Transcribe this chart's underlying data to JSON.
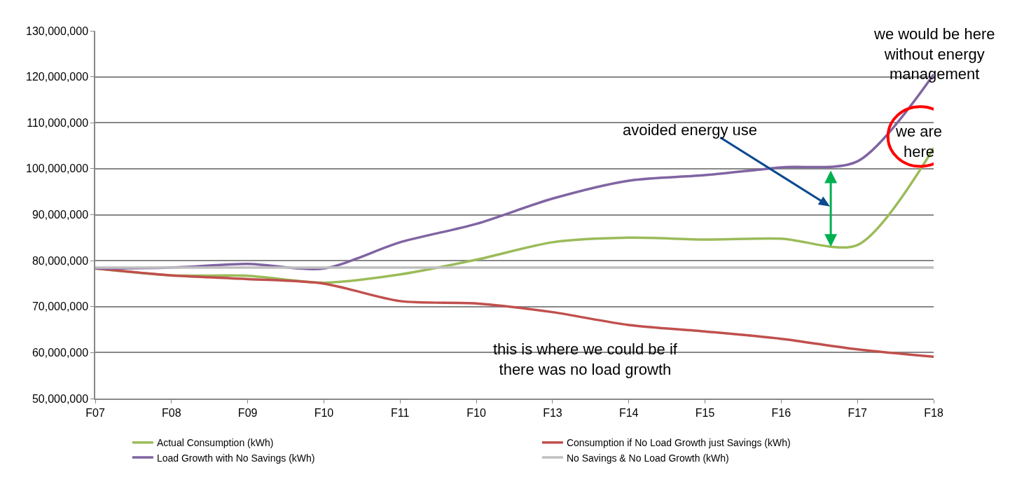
{
  "chart_data": {
    "type": "line",
    "categories": [
      "F07",
      "F08",
      "F09",
      "F10",
      "F11",
      "F10",
      "F13",
      "F14",
      "F15",
      "F16",
      "F17",
      "F18"
    ],
    "series": [
      {
        "name": "Actual Consumption (kWh)",
        "color": "#9bbb59",
        "values": [
          78300000,
          76800000,
          76700000,
          75200000,
          77000000,
          80200000,
          84000000,
          85000000,
          84600000,
          84800000,
          83400000,
          104500000
        ]
      },
      {
        "name": "Consumption if No Load Growth just Savings (kWh)",
        "color": "#c0504d",
        "values": [
          78300000,
          76800000,
          76000000,
          75000000,
          71200000,
          70700000,
          68800000,
          66000000,
          64600000,
          63000000,
          60700000,
          59100000
        ]
      },
      {
        "name": "Load Growth with No Savings (kWh)",
        "color": "#8064a2",
        "values": [
          78300000,
          78500000,
          79300000,
          78300000,
          84000000,
          88000000,
          93500000,
          97400000,
          98600000,
          100300000,
          101600000,
          120500000
        ]
      },
      {
        "name": "No Savings & No Load Growth (kWh)",
        "color": "#bfbfbf",
        "values": [
          78500000,
          78500000,
          78500000,
          78500000,
          78500000,
          78500000,
          78500000,
          78500000,
          78500000,
          78500000,
          78500000,
          78500000
        ]
      }
    ],
    "ylim": [
      50000000,
      130000000
    ],
    "yticks": [
      {
        "value": 50000000,
        "label": "50,000,000"
      },
      {
        "value": 60000000,
        "label": "60,000,000"
      },
      {
        "value": 70000000,
        "label": "70,000,000"
      },
      {
        "value": 80000000,
        "label": "80,000,000"
      },
      {
        "value": 90000000,
        "label": "90,000,000"
      },
      {
        "value": 100000000,
        "label": "100,000,000"
      },
      {
        "value": 110000000,
        "label": "110,000,000"
      },
      {
        "value": 120000000,
        "label": "120,000,000"
      },
      {
        "value": 130000000,
        "label": "130,000,000"
      }
    ],
    "grid": "y",
    "legend": "bottom",
    "marker": "none",
    "line_style": "solid",
    "annotations": [
      "avoided energy use",
      "this is where we could be if\nthere was no load growth",
      "we would be here\nwithout energy\nmanagement",
      "we are\nhere"
    ]
  }
}
